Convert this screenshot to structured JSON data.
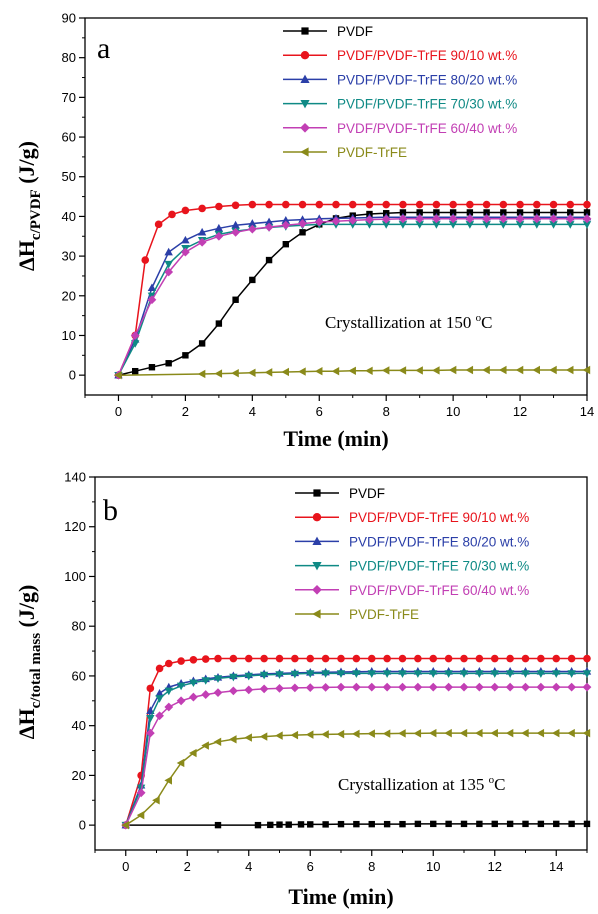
{
  "chart_data": [
    {
      "type": "line",
      "panel_label": "a",
      "annotation": "Crystallization at 150 °C",
      "annotation_parts": {
        "prefix": "Crystallization at 150 ",
        "superscript": "o",
        "suffix": "C"
      },
      "xlabel": "Time (min)",
      "ylabel": {
        "base": "ΔH",
        "subscript": "c/PVDF",
        "suffix": " (J/g)"
      },
      "xlim": [
        -1,
        14
      ],
      "ylim": [
        -5,
        90
      ],
      "xticks": [
        0,
        2,
        4,
        6,
        8,
        10,
        12,
        14
      ],
      "yticks": [
        0,
        10,
        20,
        30,
        40,
        50,
        60,
        70,
        80,
        90
      ],
      "legend_position": "top-right",
      "series": [
        {
          "name": "PVDF",
          "color": "#000000",
          "marker": "square",
          "x": [
            0,
            0.5,
            1,
            1.5,
            2,
            2.5,
            3,
            3.5,
            4,
            4.5,
            5,
            5.5,
            6,
            6.5,
            7,
            7.5,
            8,
            8.5,
            9,
            9.5,
            10,
            10.5,
            11,
            11.5,
            12,
            12.5,
            13,
            13.5,
            14
          ],
          "y": [
            0,
            1,
            2,
            3,
            5,
            8,
            13,
            19,
            24,
            29,
            33,
            36,
            38,
            39.5,
            40.2,
            40.6,
            40.8,
            41,
            41,
            41,
            41,
            41,
            41,
            41,
            41,
            41,
            41,
            41,
            41
          ]
        },
        {
          "name": "PVDF/PVDF-TrFE 90/10 wt.%",
          "color": "#e8141c",
          "marker": "circle",
          "x": [
            0,
            0.5,
            0.8,
            1.2,
            1.6,
            2,
            2.5,
            3,
            3.5,
            4,
            4.5,
            5,
            5.5,
            6,
            6.5,
            7,
            7.5,
            8,
            8.5,
            9,
            9.5,
            10,
            10.5,
            11,
            11.5,
            12,
            12.5,
            13,
            13.5,
            14
          ],
          "y": [
            0,
            10,
            29,
            38,
            40.5,
            41.5,
            42,
            42.5,
            42.8,
            43,
            43,
            43,
            43,
            43,
            43,
            43,
            43,
            43,
            43,
            43,
            43,
            43,
            43,
            43,
            43,
            43,
            43,
            43,
            43,
            43
          ]
        },
        {
          "name": "PVDF/PVDF-TrFE 80/20 wt.%",
          "color": "#2b3fa8",
          "marker": "triangle-up",
          "x": [
            0,
            0.5,
            1,
            1.5,
            2,
            2.5,
            3,
            3.5,
            4,
            4.5,
            5,
            5.5,
            6,
            6.5,
            7,
            7.5,
            8,
            8.5,
            9,
            9.5,
            10,
            10.5,
            11,
            11.5,
            12,
            12.5,
            13,
            13.5,
            14
          ],
          "y": [
            0,
            9,
            22,
            31,
            34,
            36,
            37,
            37.8,
            38.2,
            38.6,
            39,
            39.2,
            39.4,
            39.5,
            39.6,
            39.7,
            39.8,
            39.8,
            39.8,
            39.8,
            39.8,
            39.8,
            39.8,
            39.8,
            39.8,
            39.8,
            39.8,
            39.8,
            39.8
          ]
        },
        {
          "name": "PVDF/PVDF-TrFE 70/30 wt.%",
          "color": "#0f8a85",
          "marker": "triangle-down",
          "x": [
            0,
            0.5,
            1,
            1.5,
            2,
            2.5,
            3,
            3.5,
            4,
            4.5,
            5,
            5.5,
            6,
            6.5,
            7,
            7.5,
            8,
            8.5,
            9,
            9.5,
            10,
            10.5,
            11,
            11.5,
            12,
            12.5,
            13,
            13.5,
            14
          ],
          "y": [
            0,
            8,
            20,
            28,
            32,
            34,
            35.5,
            36.3,
            36.8,
            37.2,
            37.5,
            37.8,
            38,
            38,
            38,
            38,
            38,
            38,
            38,
            38,
            38,
            38,
            38,
            38,
            38,
            38,
            38,
            38,
            38
          ]
        },
        {
          "name": "PVDF/PVDF-TrFE 60/40 wt.%",
          "color": "#c23fb4",
          "marker": "diamond",
          "x": [
            0,
            0.5,
            1,
            1.5,
            2,
            2.5,
            3,
            3.5,
            4,
            4.5,
            5,
            5.5,
            6,
            6.5,
            7,
            7.5,
            8,
            8.5,
            9,
            9.5,
            10,
            10.5,
            11,
            11.5,
            12,
            12.5,
            13,
            13.5,
            14
          ],
          "y": [
            0,
            10,
            19,
            26,
            31,
            33.5,
            35,
            36,
            36.8,
            37.3,
            37.8,
            38.2,
            38.6,
            38.8,
            39,
            39.2,
            39.3,
            39.4,
            39.4,
            39.4,
            39.4,
            39.4,
            39.4,
            39.4,
            39.4,
            39.4,
            39.4,
            39.4,
            39.4
          ]
        },
        {
          "name": "PVDF-TrFE",
          "color": "#8a8a1a",
          "marker": "triangle-left",
          "x": [
            0,
            2.5,
            3,
            3.5,
            4,
            4.5,
            5,
            5.5,
            6,
            6.5,
            7,
            7.5,
            8,
            8.5,
            9,
            9.5,
            10,
            10.5,
            11,
            11.5,
            12,
            12.5,
            13,
            13.5,
            14
          ],
          "y": [
            0,
            0.3,
            0.4,
            0.5,
            0.6,
            0.7,
            0.8,
            0.9,
            1,
            1,
            1.1,
            1.1,
            1.2,
            1.2,
            1.2,
            1.2,
            1.3,
            1.3,
            1.3,
            1.3,
            1.3,
            1.3,
            1.3,
            1.3,
            1.3
          ]
        }
      ]
    },
    {
      "type": "line",
      "panel_label": "b",
      "annotation": "Crystallization at 135 °C",
      "annotation_parts": {
        "prefix": "Crystallization at 135 ",
        "superscript": "o",
        "suffix": "C"
      },
      "xlabel": "Time (min)",
      "ylabel": {
        "base": "ΔH",
        "subscript": "c/total mass",
        "suffix": " (J/g)"
      },
      "xlim": [
        -1,
        15
      ],
      "ylim": [
        -10,
        140
      ],
      "xticks": [
        0,
        2,
        4,
        6,
        8,
        10,
        12,
        14
      ],
      "yticks": [
        0,
        20,
        40,
        60,
        80,
        100,
        120,
        140
      ],
      "legend_position": "top-right",
      "series": [
        {
          "name": "PVDF",
          "color": "#000000",
          "marker": "square",
          "x": [
            0,
            3,
            4.3,
            4.7,
            5,
            5.3,
            5.7,
            6,
            6.5,
            7,
            7.5,
            8,
            8.5,
            9,
            9.5,
            10,
            10.5,
            11,
            11.5,
            12,
            12.5,
            13,
            13.5,
            14,
            14.5,
            15
          ],
          "y": [
            0,
            0,
            0,
            0.1,
            0.2,
            0.2,
            0.3,
            0.3,
            0.3,
            0.4,
            0.4,
            0.4,
            0.4,
            0.4,
            0.5,
            0.5,
            0.5,
            0.5,
            0.5,
            0.5,
            0.5,
            0.5,
            0.5,
            0.5,
            0.5,
            0.5
          ]
        },
        {
          "name": "PVDF/PVDF-TrFE 90/10 wt.%",
          "color": "#e8141c",
          "marker": "circle",
          "x": [
            0,
            0.5,
            0.8,
            1.1,
            1.4,
            1.8,
            2.2,
            2.6,
            3,
            3.5,
            4,
            4.5,
            5,
            5.5,
            6,
            6.5,
            7,
            7.5,
            8,
            8.5,
            9,
            9.5,
            10,
            10.5,
            11,
            11.5,
            12,
            12.5,
            13,
            13.5,
            14,
            14.5,
            15
          ],
          "y": [
            0,
            20,
            55,
            63,
            65,
            66,
            66.5,
            66.8,
            67,
            67,
            67,
            67,
            67,
            67,
            67,
            67,
            67,
            67,
            67,
            67,
            67,
            67,
            67,
            67,
            67,
            67,
            67,
            67,
            67,
            67,
            67,
            67,
            67
          ]
        },
        {
          "name": "PVDF/PVDF-TrFE 80/20 wt.%",
          "color": "#2b3fa8",
          "marker": "triangle-up",
          "x": [
            0,
            0.5,
            0.8,
            1.1,
            1.4,
            1.8,
            2.2,
            2.6,
            3,
            3.5,
            4,
            4.5,
            5,
            5.5,
            6,
            6.5,
            7,
            7.5,
            8,
            8.5,
            9,
            9.5,
            10,
            10.5,
            11,
            11.5,
            12,
            12.5,
            13,
            13.5,
            14,
            14.5,
            15
          ],
          "y": [
            0,
            16,
            46,
            53,
            55.5,
            57,
            58,
            58.8,
            59.4,
            60,
            60.4,
            60.8,
            61,
            61.2,
            61.4,
            61.5,
            61.6,
            61.7,
            61.8,
            61.8,
            61.8,
            61.8,
            61.8,
            61.8,
            61.8,
            61.8,
            61.8,
            61.8,
            61.8,
            61.8,
            61.8,
            61.8,
            61.8
          ]
        },
        {
          "name": "PVDF/PVDF-TrFE 70/30 wt.%",
          "color": "#0f8a85",
          "marker": "triangle-down",
          "x": [
            0,
            0.5,
            0.8,
            1.1,
            1.4,
            1.8,
            2.2,
            2.6,
            3,
            3.5,
            4,
            4.5,
            5,
            5.5,
            6,
            6.5,
            7,
            7.5,
            8,
            8.5,
            9,
            9.5,
            10,
            10.5,
            11,
            11.5,
            12,
            12.5,
            13,
            13.5,
            14,
            14.5,
            15
          ],
          "y": [
            0,
            15,
            43,
            51,
            54,
            56,
            57.3,
            58.2,
            59,
            59.6,
            60,
            60.4,
            60.6,
            60.8,
            61,
            61,
            61,
            61,
            61,
            61,
            61,
            61,
            61,
            61,
            61,
            61,
            61,
            61,
            61,
            61,
            61,
            61,
            61
          ]
        },
        {
          "name": "PVDF/PVDF-TrFE 60/40 wt.%",
          "color": "#c23fb4",
          "marker": "diamond",
          "x": [
            0,
            0.5,
            0.8,
            1.1,
            1.4,
            1.8,
            2.2,
            2.6,
            3,
            3.5,
            4,
            4.5,
            5,
            5.5,
            6,
            6.5,
            7,
            7.5,
            8,
            8.5,
            9,
            9.5,
            10,
            10.5,
            11,
            11.5,
            12,
            12.5,
            13,
            13.5,
            14,
            14.5,
            15
          ],
          "y": [
            0,
            13,
            37,
            44,
            47.5,
            50,
            51.5,
            52.5,
            53.3,
            54,
            54.4,
            54.8,
            55,
            55.2,
            55.3,
            55.4,
            55.5,
            55.5,
            55.5,
            55.5,
            55.5,
            55.5,
            55.5,
            55.5,
            55.5,
            55.5,
            55.5,
            55.5,
            55.5,
            55.5,
            55.5,
            55.5,
            55.5
          ]
        },
        {
          "name": "PVDF-TrFE",
          "color": "#8a8a1a",
          "marker": "triangle-left",
          "x": [
            0,
            0.5,
            1,
            1.4,
            1.8,
            2.2,
            2.6,
            3,
            3.5,
            4,
            4.5,
            5,
            5.5,
            6,
            6.5,
            7,
            7.5,
            8,
            8.5,
            9,
            9.5,
            10,
            10.5,
            11,
            11.5,
            12,
            12.5,
            13,
            13.5,
            14,
            14.5,
            15
          ],
          "y": [
            0,
            4,
            10,
            18,
            25,
            29,
            32,
            33.5,
            34.5,
            35.2,
            35.6,
            36,
            36.2,
            36.4,
            36.5,
            36.6,
            36.7,
            36.8,
            36.8,
            36.9,
            36.9,
            37,
            37,
            37,
            37,
            37,
            37,
            37,
            37,
            37,
            37,
            37
          ]
        }
      ]
    }
  ]
}
